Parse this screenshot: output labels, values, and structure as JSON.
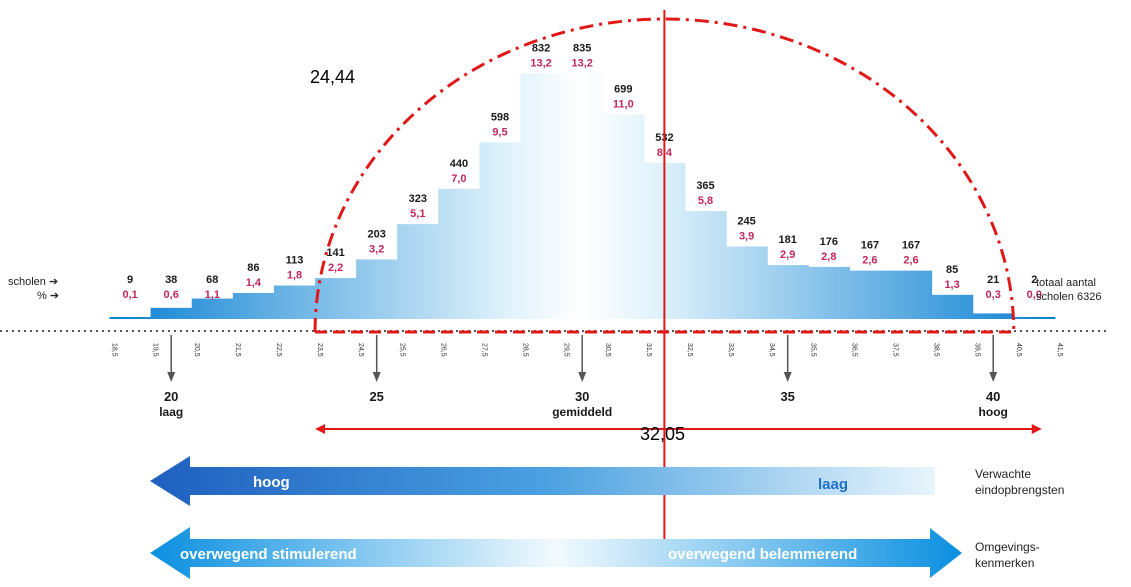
{
  "chart_data": {
    "type": "bar",
    "categories": [
      "19",
      "20",
      "21",
      "22",
      "23",
      "24",
      "25",
      "26",
      "27",
      "28",
      "29",
      "30",
      "31",
      "32",
      "33",
      "34",
      "35",
      "36",
      "37",
      "38",
      "39",
      "40",
      "41"
    ],
    "counts": [
      9,
      38,
      68,
      86,
      113,
      141,
      203,
      323,
      440,
      598,
      832,
      835,
      699,
      532,
      365,
      245,
      181,
      176,
      167,
      167,
      85,
      21,
      2
    ],
    "values": [
      0.1,
      0.6,
      1.1,
      1.4,
      1.8,
      2.2,
      3.2,
      5.1,
      7.0,
      9.5,
      13.2,
      13.2,
      11.0,
      8.4,
      5.8,
      3.9,
      2.9,
      2.8,
      2.6,
      2.6,
      1.3,
      0.3,
      0.0
    ],
    "count_labels": [
      "9",
      "38",
      "68",
      "86",
      "113",
      "141",
      "203",
      "323",
      "440",
      "598",
      "832",
      "835",
      "699",
      "532",
      "365",
      "245",
      "181",
      "176",
      "167",
      "167",
      "85",
      "21",
      "2"
    ],
    "pct_labels": [
      "0,1",
      "0,6",
      "1,1",
      "1,4",
      "1,8",
      "2,2",
      "3,2",
      "5,1",
      "7,0",
      "9,5",
      "13,2",
      "13,2",
      "11,0",
      "8,4",
      "5,8",
      "3,9",
      "2,9",
      "2,8",
      "2,6",
      "2,6",
      "1,3",
      "0,3",
      "0,0"
    ],
    "tick_labels": [
      "18,5",
      "19,5",
      "20,5",
      "21,5",
      "22,5",
      "23,5",
      "24,5",
      "25,5",
      "26,5",
      "27,5",
      "28,5",
      "29,5",
      "30,5",
      "31,5",
      "32,5",
      "33,5",
      "34,5",
      "35,5",
      "36,5",
      "37,5",
      "38,5",
      "39,5",
      "40,5",
      "41,5"
    ],
    "axis_markers": [
      {
        "value": 20,
        "label": "20",
        "sub": "laag"
      },
      {
        "value": 25,
        "label": "25",
        "sub": ""
      },
      {
        "value": 30,
        "label": "30",
        "sub": "gemiddeld"
      },
      {
        "value": 35,
        "label": "35",
        "sub": ""
      },
      {
        "value": 40,
        "label": "40",
        "sub": "hoog"
      }
    ],
    "xlim": [
      18,
      42
    ],
    "ylim": [
      0,
      13.5
    ],
    "annotations": {
      "arc_value": "24,44",
      "width_value": "32,05",
      "vertical_line_x": 32.0,
      "arc_start_x": 23.5,
      "arc_end_x": 40.5
    },
    "colors": {
      "bar_dark": "#0a82d4",
      "bar_light": "#ffffff",
      "pct": "#c0275b",
      "annotation": "#e01818"
    }
  },
  "left_labels": {
    "scholen": "scholen ➔",
    "percent": "% ➔"
  },
  "total_label": {
    "line1": "totaal aantal",
    "line2": "scholen 6326"
  },
  "bands": [
    {
      "left_text": "hoog",
      "right_text": "laag",
      "caption_line1": "Verwachte",
      "caption_line2": "eindopbrengsten"
    },
    {
      "left_text": "overwegend stimulerend",
      "right_text": "overwegend belemmerend",
      "caption_line1": "Omgevings-",
      "caption_line2": "kenmerken"
    }
  ]
}
